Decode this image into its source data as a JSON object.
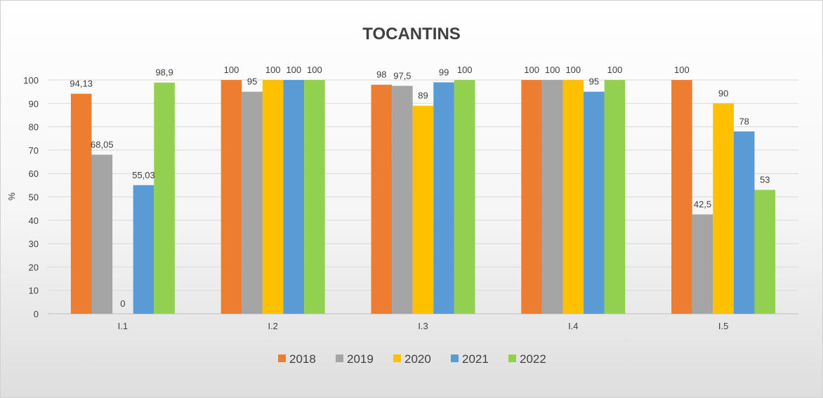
{
  "chart_data": {
    "type": "bar",
    "title": "TOCANTINS",
    "ylabel": "%",
    "xlabel": "",
    "ylim": [
      0,
      100
    ],
    "yticks": [
      0,
      10,
      20,
      30,
      40,
      50,
      60,
      70,
      80,
      90,
      100
    ],
    "grid": true,
    "legend_position": "bottom",
    "categories": [
      "I.1",
      "I.2",
      "I.3",
      "I.4",
      "I.5"
    ],
    "series": [
      {
        "name": "2018",
        "color": "#ED7D31",
        "values": [
          94.13,
          100,
          98,
          100,
          100
        ],
        "labels": [
          "94,13",
          "100",
          "98",
          "100",
          "100"
        ]
      },
      {
        "name": "2019",
        "color": "#A5A5A5",
        "values": [
          68.05,
          95,
          97.5,
          100,
          42.5
        ],
        "labels": [
          "68,05",
          "95",
          "97,5",
          "100",
          "42,5"
        ]
      },
      {
        "name": "2020",
        "color": "#FFC000",
        "values": [
          0,
          100,
          89,
          100,
          90
        ],
        "labels": [
          "0",
          "100",
          "89",
          "100",
          "90"
        ]
      },
      {
        "name": "2021",
        "color": "#5B9BD5",
        "values": [
          55.03,
          100,
          99,
          95,
          78
        ],
        "labels": [
          "55,03",
          "100",
          "99",
          "95",
          "78"
        ]
      },
      {
        "name": "2022",
        "color": "#92D050",
        "values": [
          98.9,
          100,
          100,
          100,
          53
        ],
        "labels": [
          "98,9",
          "100",
          "100",
          "100",
          "53"
        ]
      }
    ]
  }
}
